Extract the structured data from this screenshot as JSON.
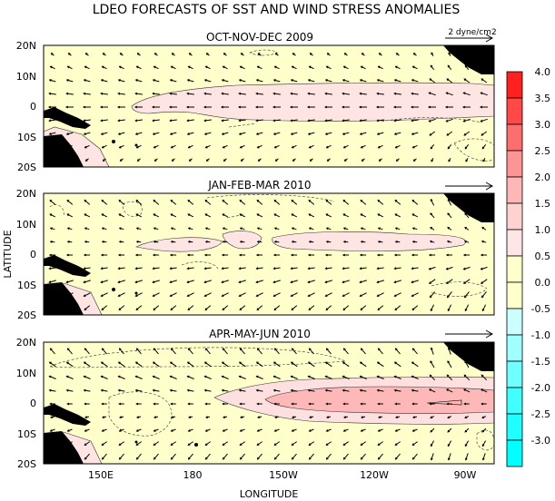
{
  "title": "LDEO FORECASTS OF SST AND WIND STRESS ANOMALIES",
  "x_axis": {
    "label": "LONGITUDE",
    "ticks": [
      "150E",
      "180",
      "150W",
      "120W",
      "90W"
    ]
  },
  "y_axis": {
    "label": "LATITUDE",
    "ticks": [
      "20N",
      "10N",
      "0",
      "10S",
      "20S"
    ]
  },
  "panels": [
    {
      "title": "OCT-NOV-DEC 2009",
      "vector_label": "2 dyne/cm2",
      "shading": [
        {
          "level": "0.5-1.0",
          "lon": [
            143,
            268
          ],
          "lat": [
            -3.5,
            5.5
          ]
        },
        {
          "level": "0.5-1.0",
          "lon": [
            128,
            143
          ],
          "lat": [
            -20,
            -10
          ]
        }
      ]
    },
    {
      "title": "JAN-FEB-MAR 2010",
      "vector_label": "",
      "shading": [
        {
          "level": "0.5-1.0",
          "lon": [
            134,
            178
          ],
          "lat": [
            -2,
            2
          ]
        },
        {
          "level": "0.5-1.0",
          "lon": [
            178,
            192
          ],
          "lat": [
            -2,
            3.5
          ]
        },
        {
          "level": "0.5-1.0",
          "lon": [
            198,
            268
          ],
          "lat": [
            -3,
            3
          ]
        }
      ]
    },
    {
      "title": "APR-MAY-JUN 2010",
      "vector_label": "",
      "shading": [
        {
          "level": "0.5-1.0",
          "lon": [
            166,
            280
          ],
          "lat": [
            -8,
            7
          ]
        },
        {
          "level": "1.0-1.5",
          "lon": [
            209,
            280
          ],
          "lat": [
            -3.5,
            3.5
          ]
        }
      ]
    }
  ],
  "colorbar": {
    "labels": [
      "4.0",
      "3.5",
      "3.0",
      "2.5",
      "2.0",
      "1.5",
      "1.0",
      "0.5",
      "0.0",
      "-0.5",
      "-1.0",
      "-1.5",
      "-2.0",
      "-2.5",
      "-3.0"
    ],
    "colors": [
      "#ff2020",
      "#ff4848",
      "#ff6e6e",
      "#ff9494",
      "#ffb6b6",
      "#ffd2d2",
      "#ffe6e6",
      "#ffffcc",
      "#ffffcc",
      "#ccffff",
      "#a0ffff",
      "#70ffff",
      "#40ffff",
      "#20ffff",
      "#00ffff"
    ]
  }
}
